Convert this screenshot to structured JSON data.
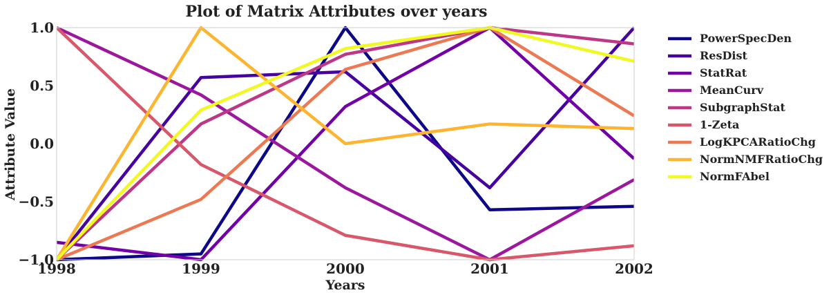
{
  "chart_data": {
    "type": "line",
    "title": "Plot of Matrix Attributes over years",
    "xlabel": "Years",
    "ylabel": "Attribute Value",
    "x": [
      1998,
      1999,
      2000,
      2001,
      2002
    ],
    "x_tick_labels": [
      "1998",
      "1999",
      "2000",
      "2001",
      "2002"
    ],
    "y_ticks": [
      -1.0,
      -0.5,
      0.0,
      0.5,
      1.0
    ],
    "y_tick_labels": [
      "−1.0",
      "−0.5",
      "0.0",
      "0.5",
      "1.0"
    ],
    "xlim": [
      1998,
      2002
    ],
    "ylim": [
      -1.0,
      1.0
    ],
    "grid": false,
    "legend_placement": "outside-right-top",
    "series": [
      {
        "name": "PowerSpecDen",
        "color": "#0d0887",
        "values": [
          -1.0,
          -0.95,
          1.0,
          -0.57,
          -0.54
        ]
      },
      {
        "name": "ResDist",
        "color": "#46039f",
        "values": [
          -1.0,
          0.57,
          0.62,
          -0.38,
          1.0
        ]
      },
      {
        "name": "StatRat",
        "color": "#7201a8",
        "values": [
          -0.85,
          -1.0,
          0.32,
          1.0,
          -0.13
        ]
      },
      {
        "name": "MeanCurv",
        "color": "#9c179e",
        "values": [
          1.0,
          0.42,
          -0.38,
          -1.0,
          -0.31
        ]
      },
      {
        "name": "SubgraphStat",
        "color": "#bd3786",
        "values": [
          -1.0,
          0.17,
          0.77,
          1.0,
          0.86
        ]
      },
      {
        "name": "1-Zeta",
        "color": "#d8576b",
        "values": [
          1.0,
          -0.18,
          -0.79,
          -1.0,
          -0.88
        ]
      },
      {
        "name": "LogKPCARatioChg",
        "color": "#ed7953",
        "values": [
          -1.0,
          -0.48,
          0.64,
          1.0,
          0.24
        ]
      },
      {
        "name": "NormNMFRatioChg",
        "color": "#fdb42f",
        "values": [
          -1.0,
          1.0,
          0.0,
          0.17,
          0.13
        ]
      },
      {
        "name": "NormFAbel",
        "color": "#f0f921",
        "values": [
          -1.0,
          0.29,
          0.82,
          1.0,
          0.71
        ]
      }
    ]
  }
}
